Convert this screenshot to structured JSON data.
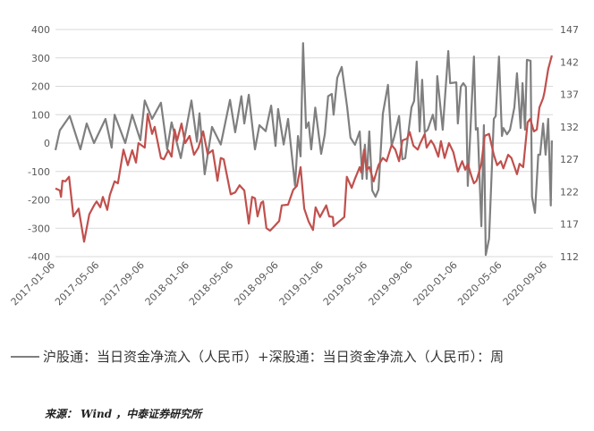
{
  "chart_data": {
    "type": "line",
    "title": "",
    "grid": true,
    "colors": {
      "gray_series": "#7f7f7f",
      "red_series": "#c0504d",
      "grid": "#d9d9d9"
    },
    "y_left": {
      "range": [
        -400,
        400
      ],
      "ticks": [
        "400",
        "300",
        "200",
        "100",
        "0",
        "-100",
        "-200",
        "-300",
        "-400"
      ]
    },
    "y_right": {
      "range": [
        112,
        147
      ],
      "ticks": [
        "147",
        "142",
        "137",
        "132",
        "127",
        "122",
        "117",
        "112"
      ]
    },
    "x_range": [
      "2017-01-06",
      "2020-09-18"
    ],
    "x_ticks": [
      "2017-01-06",
      "2017-05-06",
      "2017-09-06",
      "2018-01-06",
      "2018-05-06",
      "2018-09-06",
      "2019-01-06",
      "2019-05-06",
      "2019-09-06",
      "2020-01-06",
      "2020-05-06",
      "2020-09-06"
    ],
    "series": [
      {
        "name": "沪股通：当日资金净流入（人民币）+深股通：当日资金净流入（人民币）：周",
        "axis": "left",
        "color": "#7f7f7f",
        "points": [
          [
            "2017-01-06",
            -25
          ],
          [
            "2017-01-18",
            45
          ],
          [
            "2017-02-14",
            95
          ],
          [
            "2017-03-15",
            -22
          ],
          [
            "2017-04-01",
            69
          ],
          [
            "2017-04-21",
            0
          ],
          [
            "2017-05-22",
            85
          ],
          [
            "2017-06-08",
            -16
          ],
          [
            "2017-06-16",
            100
          ],
          [
            "2017-07-15",
            0
          ],
          [
            "2017-08-03",
            100
          ],
          [
            "2017-08-25",
            10
          ],
          [
            "2017-09-06",
            150
          ],
          [
            "2017-09-26",
            85
          ],
          [
            "2017-10-20",
            142
          ],
          [
            "2017-11-06",
            -22
          ],
          [
            "2017-11-18",
            73
          ],
          [
            "2017-12-13",
            -53
          ],
          [
            "2018-01-11",
            150
          ],
          [
            "2018-01-26",
            5
          ],
          [
            "2018-02-02",
            105
          ],
          [
            "2018-02-16",
            -110
          ],
          [
            "2018-03-08",
            57
          ],
          [
            "2018-04-01",
            -5
          ],
          [
            "2018-04-26",
            152
          ],
          [
            "2018-05-10",
            38
          ],
          [
            "2018-05-27",
            165
          ],
          [
            "2018-06-04",
            69
          ],
          [
            "2018-06-16",
            170
          ],
          [
            "2018-07-03",
            -22
          ],
          [
            "2018-07-15",
            63
          ],
          [
            "2018-08-01",
            42
          ],
          [
            "2018-08-16",
            132
          ],
          [
            "2018-08-28",
            -10
          ],
          [
            "2018-09-04",
            120
          ],
          [
            "2018-09-19",
            -5
          ],
          [
            "2018-10-01",
            85
          ],
          [
            "2018-10-20",
            -150
          ],
          [
            "2018-10-28",
            25
          ],
          [
            "2018-11-04",
            -47
          ],
          [
            "2018-11-11",
            352
          ],
          [
            "2018-11-19",
            53
          ],
          [
            "2018-11-26",
            73
          ],
          [
            "2018-12-03",
            -22
          ],
          [
            "2018-12-14",
            125
          ],
          [
            "2018-12-30",
            -38
          ],
          [
            "2019-01-09",
            31
          ],
          [
            "2019-01-18",
            165
          ],
          [
            "2019-01-28",
            173
          ],
          [
            "2019-02-02",
            100
          ],
          [
            "2019-02-12",
            230
          ],
          [
            "2019-02-24",
            268
          ],
          [
            "2019-03-11",
            126
          ],
          [
            "2019-03-20",
            19
          ],
          [
            "2019-04-01",
            -6
          ],
          [
            "2019-04-14",
            41
          ],
          [
            "2019-04-21",
            -126
          ],
          [
            "2019-04-28",
            -6
          ],
          [
            "2019-05-03",
            -126
          ],
          [
            "2019-05-10",
            41
          ],
          [
            "2019-05-18",
            -167
          ],
          [
            "2019-05-27",
            -189
          ],
          [
            "2019-06-04",
            -164
          ],
          [
            "2019-06-16",
            104
          ],
          [
            "2019-06-30",
            205
          ],
          [
            "2019-07-10",
            -9
          ],
          [
            "2019-07-17",
            22
          ],
          [
            "2019-07-30",
            95
          ],
          [
            "2019-08-08",
            -57
          ],
          [
            "2019-08-16",
            -53
          ],
          [
            "2019-09-02",
            126
          ],
          [
            "2019-09-09",
            148
          ],
          [
            "2019-09-16",
            287
          ],
          [
            "2019-09-24",
            41
          ],
          [
            "2019-10-01",
            223
          ],
          [
            "2019-10-08",
            38
          ],
          [
            "2019-10-16",
            47
          ],
          [
            "2019-10-30",
            100
          ],
          [
            "2019-11-07",
            47
          ],
          [
            "2019-11-11",
            236
          ],
          [
            "2019-11-26",
            47
          ],
          [
            "2019-12-11",
            324
          ],
          [
            "2019-12-16",
            211
          ],
          [
            "2020-01-02",
            214
          ],
          [
            "2020-01-06",
            69
          ],
          [
            "2020-01-14",
            198
          ],
          [
            "2020-01-21",
            211
          ],
          [
            "2020-01-28",
            198
          ],
          [
            "2020-02-02",
            -151
          ],
          [
            "2020-02-19",
            305
          ],
          [
            "2020-02-24",
            47
          ],
          [
            "2020-02-29",
            53
          ],
          [
            "2020-03-10",
            -293
          ],
          [
            "2020-03-17",
            63
          ],
          [
            "2020-03-22",
            -394
          ],
          [
            "2020-03-31",
            -337
          ],
          [
            "2020-04-13",
            85
          ],
          [
            "2020-04-18",
            95
          ],
          [
            "2020-04-27",
            305
          ],
          [
            "2020-05-05",
            25
          ],
          [
            "2020-05-09",
            53
          ],
          [
            "2020-05-19",
            31
          ],
          [
            "2020-05-27",
            47
          ],
          [
            "2020-06-08",
            126
          ],
          [
            "2020-06-15",
            246
          ],
          [
            "2020-06-25",
            53
          ],
          [
            "2020-06-30",
            211
          ],
          [
            "2020-07-07",
            47
          ],
          [
            "2020-07-12",
            293
          ],
          [
            "2020-07-22",
            290
          ],
          [
            "2020-07-26",
            -189
          ],
          [
            "2020-08-03",
            -246
          ],
          [
            "2020-08-12",
            -41
          ],
          [
            "2020-08-17",
            -41
          ],
          [
            "2020-08-25",
            69
          ],
          [
            "2020-09-01",
            -41
          ],
          [
            "2020-09-08",
            85
          ],
          [
            "2020-09-15",
            -220
          ],
          [
            "2020-09-18",
            9
          ]
        ]
      },
      {
        "axis": "right",
        "color": "#c0504d",
        "points": [
          [
            "2017-01-06",
            122.5
          ],
          [
            "2017-01-18",
            122.2
          ],
          [
            "2017-01-21",
            121.2
          ],
          [
            "2017-01-25",
            123.7
          ],
          [
            "2017-02-02",
            123.6
          ],
          [
            "2017-02-12",
            124.3
          ],
          [
            "2017-02-24",
            118.2
          ],
          [
            "2017-03-10",
            119.4
          ],
          [
            "2017-03-25",
            114.3
          ],
          [
            "2017-04-08",
            118.5
          ],
          [
            "2017-04-21",
            119.9
          ],
          [
            "2017-04-28",
            120.5
          ],
          [
            "2017-05-08",
            119.6
          ],
          [
            "2017-05-15",
            121.2
          ],
          [
            "2017-05-27",
            119.2
          ],
          [
            "2017-06-03",
            121.5
          ],
          [
            "2017-06-16",
            123.6
          ],
          [
            "2017-06-25",
            123.3
          ],
          [
            "2017-07-10",
            128.5
          ],
          [
            "2017-07-22",
            126.1
          ],
          [
            "2017-08-03",
            128.4
          ],
          [
            "2017-08-13",
            126.5
          ],
          [
            "2017-08-20",
            129.5
          ],
          [
            "2017-09-06",
            128.8
          ],
          [
            "2017-09-14",
            134.0
          ],
          [
            "2017-09-26",
            130.9
          ],
          [
            "2017-10-03",
            132.0
          ],
          [
            "2017-10-08",
            130.5
          ],
          [
            "2017-10-20",
            127.2
          ],
          [
            "2017-10-28",
            127.0
          ],
          [
            "2017-11-09",
            128.4
          ],
          [
            "2017-11-18",
            127.4
          ],
          [
            "2017-11-26",
            131.6
          ],
          [
            "2017-12-03",
            129.9
          ],
          [
            "2017-12-15",
            132.5
          ],
          [
            "2017-12-25",
            129.5
          ],
          [
            "2018-01-06",
            130.6
          ],
          [
            "2018-01-18",
            127.7
          ],
          [
            "2018-01-30",
            128.8
          ],
          [
            "2018-02-12",
            131.3
          ],
          [
            "2018-02-24",
            127.8
          ],
          [
            "2018-03-10",
            128.4
          ],
          [
            "2018-03-23",
            123.7
          ],
          [
            "2018-04-01",
            127.2
          ],
          [
            "2018-04-09",
            127.0
          ],
          [
            "2018-04-28",
            121.6
          ],
          [
            "2018-05-10",
            121.9
          ],
          [
            "2018-05-22",
            123.0
          ],
          [
            "2018-06-04",
            122.2
          ],
          [
            "2018-06-16",
            117.1
          ],
          [
            "2018-06-25",
            121.2
          ],
          [
            "2018-07-03",
            121.0
          ],
          [
            "2018-07-10",
            118.2
          ],
          [
            "2018-07-20",
            120.3
          ],
          [
            "2018-07-25",
            120.5
          ],
          [
            "2018-08-03",
            116.4
          ],
          [
            "2018-08-13",
            116.0
          ],
          [
            "2018-08-25",
            116.7
          ],
          [
            "2018-09-07",
            117.5
          ],
          [
            "2018-09-14",
            119.9
          ],
          [
            "2018-10-01",
            120.0
          ],
          [
            "2018-10-15",
            122.3
          ],
          [
            "2018-10-25",
            122.9
          ],
          [
            "2018-11-04",
            125.8
          ],
          [
            "2018-11-14",
            119.4
          ],
          [
            "2018-11-26",
            117.4
          ],
          [
            "2018-12-08",
            116.1
          ],
          [
            "2018-12-15",
            119.6
          ],
          [
            "2018-12-27",
            118.1
          ],
          [
            "2019-01-13",
            119.9
          ],
          [
            "2019-01-21",
            118.2
          ],
          [
            "2019-01-31",
            118.1
          ],
          [
            "2019-02-02",
            116.7
          ],
          [
            "2019-03-03",
            118.1
          ],
          [
            "2019-03-10",
            124.3
          ],
          [
            "2019-03-23",
            122.6
          ],
          [
            "2019-04-01",
            124.0
          ],
          [
            "2019-04-14",
            125.8
          ],
          [
            "2019-04-18",
            125.0
          ],
          [
            "2019-04-26",
            128.5
          ],
          [
            "2019-05-03",
            125.4
          ],
          [
            "2019-05-10",
            125.8
          ],
          [
            "2019-05-22",
            123.6
          ],
          [
            "2019-06-04",
            126.1
          ],
          [
            "2019-06-16",
            127.2
          ],
          [
            "2019-06-26",
            126.7
          ],
          [
            "2019-07-10",
            129.2
          ],
          [
            "2019-07-20",
            128.5
          ],
          [
            "2019-07-30",
            126.7
          ],
          [
            "2019-08-08",
            129.9
          ],
          [
            "2019-08-21",
            130.2
          ],
          [
            "2019-08-28",
            131.2
          ],
          [
            "2019-09-07",
            129.1
          ],
          [
            "2019-09-19",
            128.5
          ],
          [
            "2019-09-26",
            129.5
          ],
          [
            "2019-10-08",
            130.9
          ],
          [
            "2019-10-13",
            128.8
          ],
          [
            "2019-10-25",
            129.9
          ],
          [
            "2019-11-02",
            129.2
          ],
          [
            "2019-11-14",
            127.4
          ],
          [
            "2019-11-21",
            129.8
          ],
          [
            "2019-12-01",
            127.2
          ],
          [
            "2019-12-13",
            129.5
          ],
          [
            "2019-12-25",
            128.1
          ],
          [
            "2020-01-06",
            125.1
          ],
          [
            "2020-01-18",
            126.7
          ],
          [
            "2020-01-26",
            125.4
          ],
          [
            "2020-02-02",
            126.3
          ],
          [
            "2020-02-12",
            124.4
          ],
          [
            "2020-02-19",
            123.3
          ],
          [
            "2020-02-26",
            123.7
          ],
          [
            "2020-03-10",
            126.3
          ],
          [
            "2020-03-19",
            130.6
          ],
          [
            "2020-03-31",
            130.9
          ],
          [
            "2020-04-13",
            127.7
          ],
          [
            "2020-04-22",
            126.1
          ],
          [
            "2020-05-02",
            126.7
          ],
          [
            "2020-05-09",
            125.6
          ],
          [
            "2020-05-22",
            127.7
          ],
          [
            "2020-05-31",
            127.2
          ],
          [
            "2020-06-15",
            124.7
          ],
          [
            "2020-06-22",
            126.3
          ],
          [
            "2020-07-02",
            125.8
          ],
          [
            "2020-07-14",
            132.7
          ],
          [
            "2020-07-21",
            133.2
          ],
          [
            "2020-07-31",
            131.3
          ],
          [
            "2020-08-08",
            131.6
          ],
          [
            "2020-08-15",
            135.0
          ],
          [
            "2020-08-25",
            136.4
          ],
          [
            "2020-08-29",
            137.4
          ],
          [
            "2020-09-08",
            140.9
          ],
          [
            "2020-09-18",
            143.0
          ]
        ]
      }
    ]
  },
  "legend": {
    "label": "沪股通：当日资金净流入（人民币）+深股通：当日资金净流入（人民币）：周"
  },
  "source": "来源： Wind ，中泰证券研究所"
}
